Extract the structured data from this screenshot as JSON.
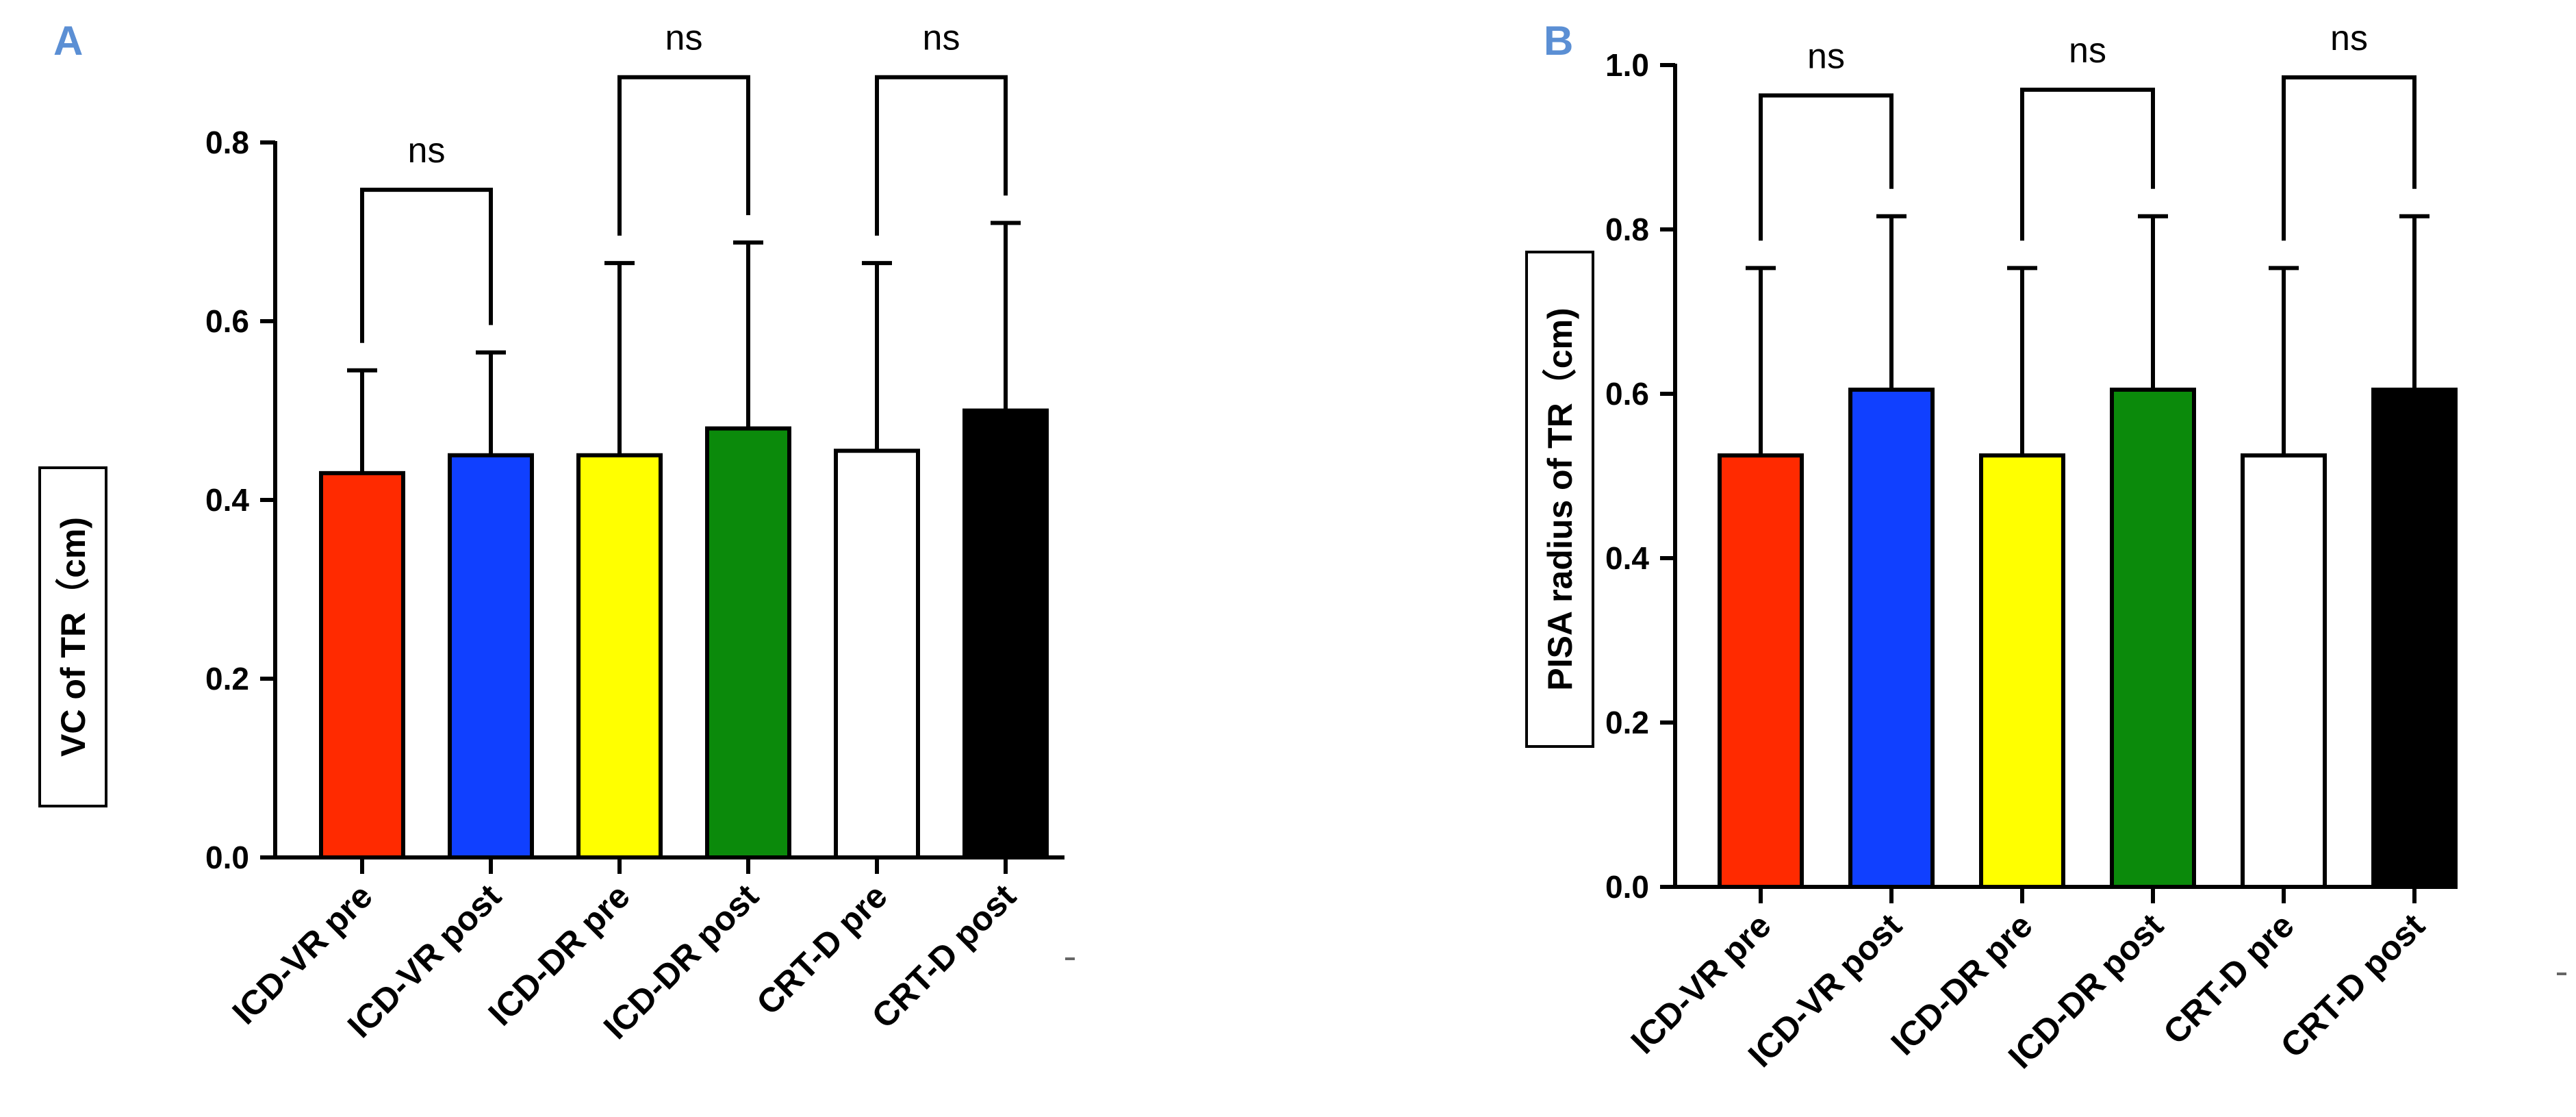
{
  "chart_data": [
    {
      "type": "bar",
      "panel_label": "A",
      "title": "",
      "ylabel": "VC of TR（cm)",
      "xlabel": "",
      "ylim": [
        0,
        0.8
      ],
      "yticks": [
        "0.0",
        "0.2",
        "0.4",
        "0.6",
        "0.8"
      ],
      "categories": [
        "ICD-VR pre",
        "ICD-VR post",
        "ICD-DR pre",
        "ICD-DR post",
        "CRT-D pre",
        "CRT-D post"
      ],
      "values": [
        0.43,
        0.45,
        0.45,
        0.48,
        0.455,
        0.5
      ],
      "error_upper": [
        0.545,
        0.565,
        0.665,
        0.688,
        0.665,
        0.71
      ],
      "colors": [
        "#ff2a00",
        "#1040ff",
        "#ffff00",
        "#0b8a0b",
        "#ffffff",
        "#000000"
      ],
      "comparisons": [
        {
          "pair": [
            0,
            1
          ],
          "label": "ns",
          "bracket_y": 0.747
        },
        {
          "pair": [
            2,
            3
          ],
          "label": "ns",
          "bracket_y": 0.873
        },
        {
          "pair": [
            4,
            5
          ],
          "label": "ns",
          "bracket_y": 0.873
        }
      ]
    },
    {
      "type": "bar",
      "panel_label": "B",
      "title": "",
      "ylabel": "PISA radius of TR（cm)",
      "xlabel": "",
      "ylim": [
        0,
        1.0
      ],
      "yticks": [
        "0.0",
        "0.2",
        "0.4",
        "0.6",
        "0.8",
        "1.0"
      ],
      "categories": [
        "ICD-VR pre",
        "ICD-VR post",
        "ICD-DR pre",
        "ICD-DR post",
        "CRT-D pre",
        "CRT-D post"
      ],
      "values": [
        0.525,
        0.605,
        0.525,
        0.605,
        0.525,
        0.605
      ],
      "error_upper": [
        0.753,
        0.816,
        0.753,
        0.816,
        0.753,
        0.816
      ],
      "colors": [
        "#ff2a00",
        "#1040ff",
        "#ffff00",
        "#0b8a0b",
        "#ffffff",
        "#000000"
      ],
      "comparisons": [
        {
          "pair": [
            0,
            1
          ],
          "label": "ns",
          "bracket_y": 0.963
        },
        {
          "pair": [
            2,
            3
          ],
          "label": "ns",
          "bracket_y": 0.97
        },
        {
          "pair": [
            4,
            5
          ],
          "label": "ns",
          "bracket_y": 0.985
        }
      ]
    }
  ]
}
